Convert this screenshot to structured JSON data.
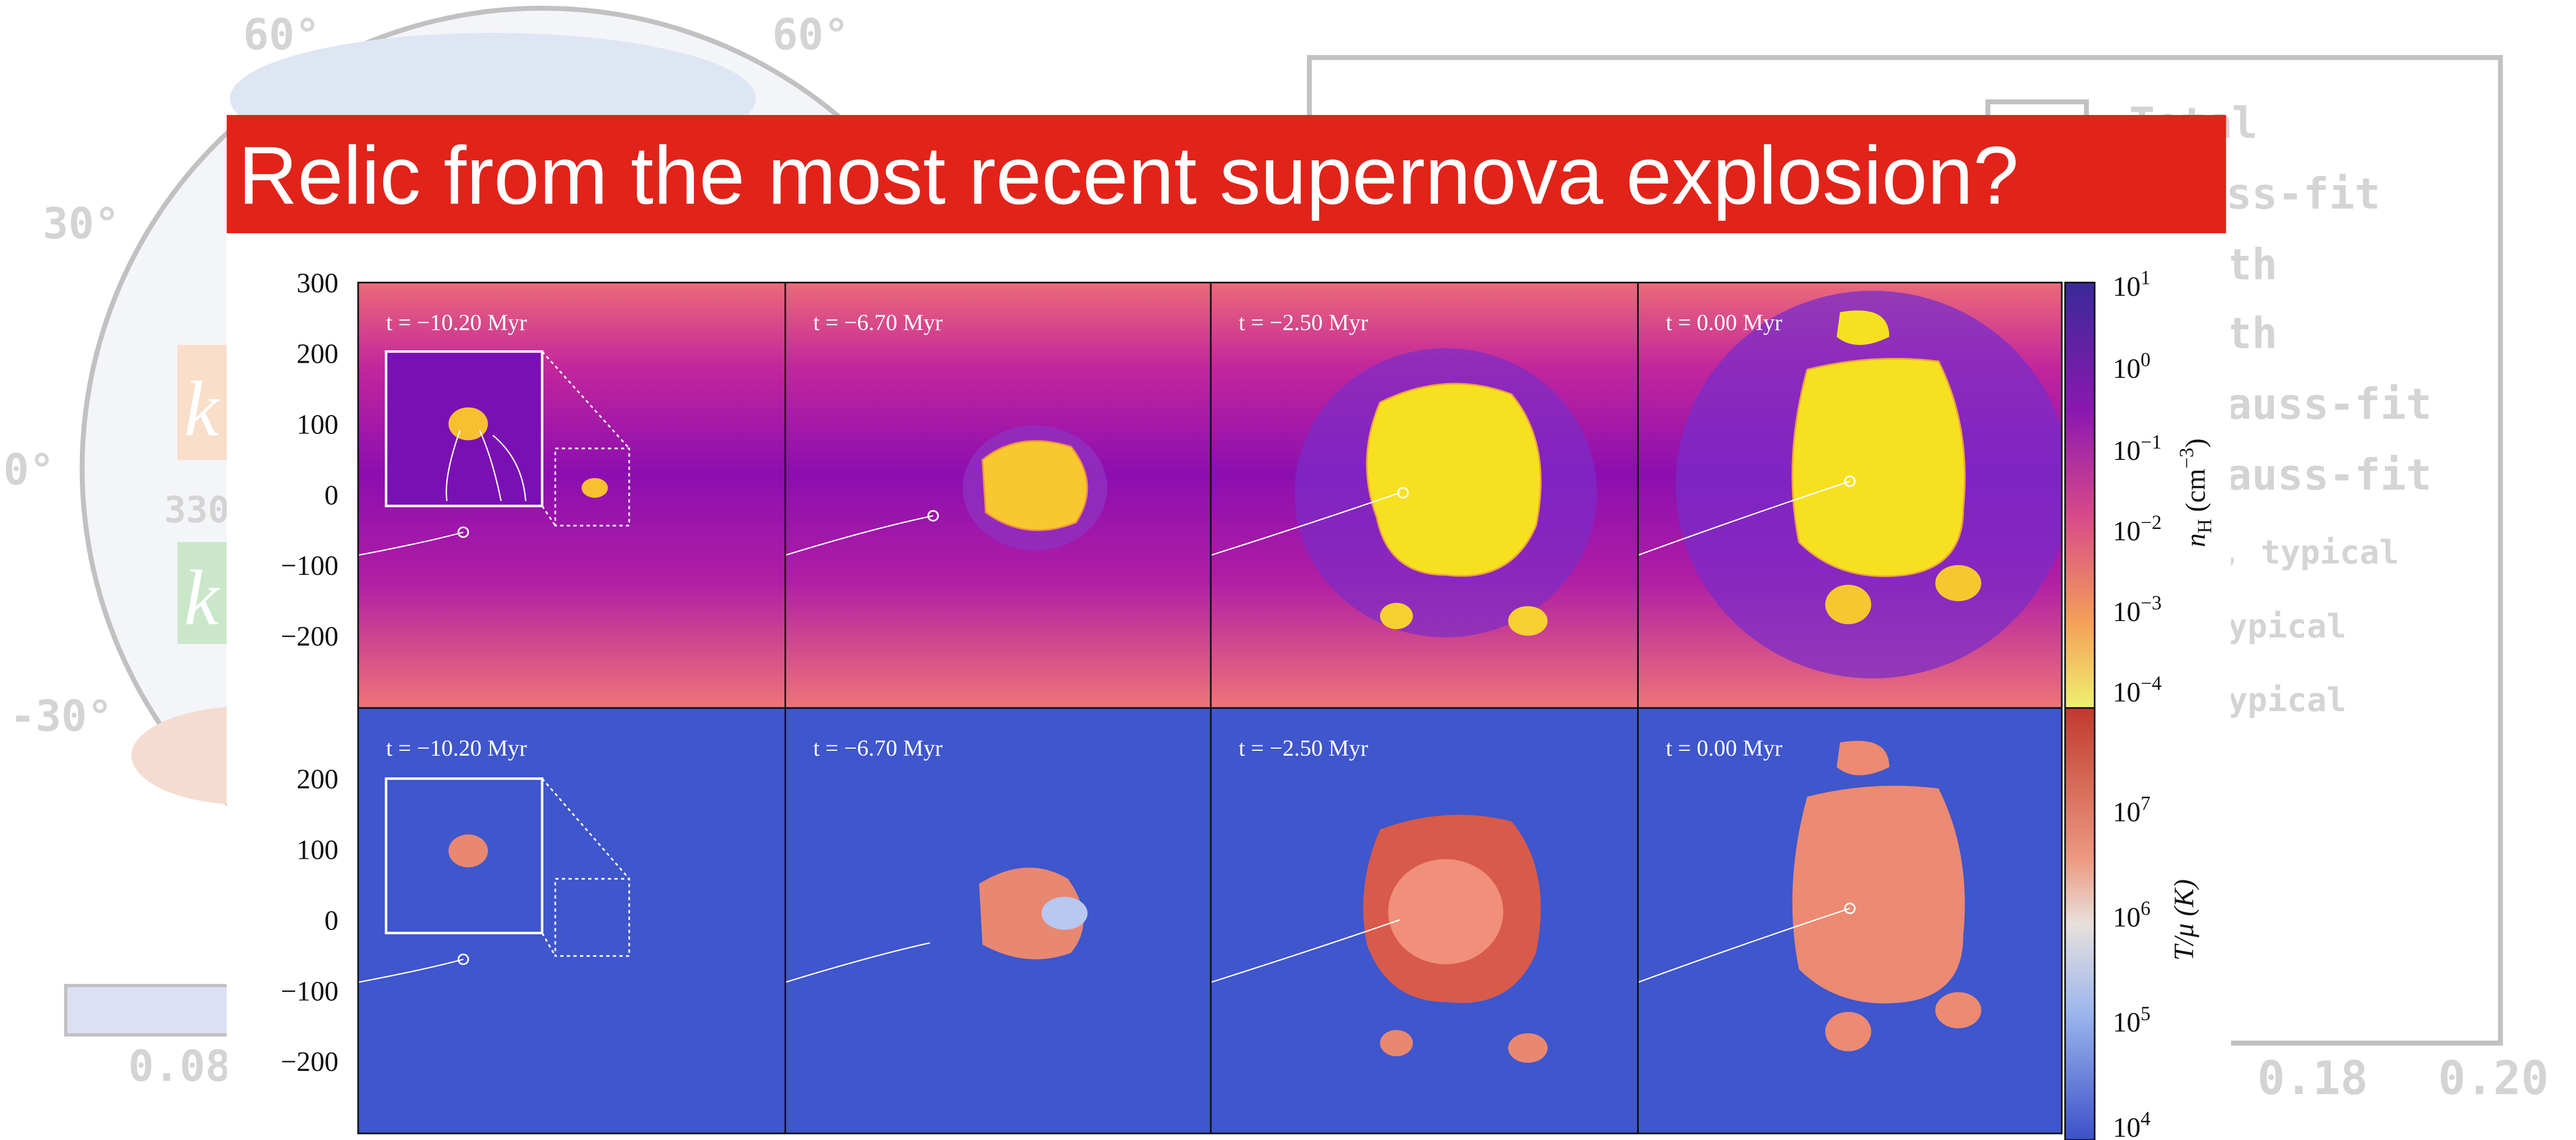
{
  "title": "Relic from the most recent supernova explosion?",
  "background": {
    "lat_labels": [
      "60°",
      "60°",
      "30°",
      "0°",
      "-30°"
    ],
    "sky_center_label": "330",
    "k_labels": [
      "k",
      "k"
    ],
    "colorbar_tick": "0.08",
    "x_ticks": [
      "0.18",
      "0.20"
    ],
    "legend": [
      "Total",
      "ss-fit",
      "th",
      "th",
      "auss-fit",
      "auss-fit",
      ", typical",
      "ypical",
      "ypical"
    ]
  },
  "figure": {
    "rows": [
      {
        "y_ticks": [
          "300",
          "200",
          "100",
          "0",
          "−100",
          "−200"
        ],
        "panel_labels": [
          "t = −10.20 Myr",
          "t = −6.70 Myr",
          "t = −2.50 Myr",
          "t = 0.00 Myr"
        ],
        "colorbar": {
          "label": {
            "symbol": "n",
            "subscript": "H",
            "unit": " (cm",
            "exponent": "−3",
            "close": ")"
          },
          "ticks": [
            {
              "base": "10",
              "exp": "1"
            },
            {
              "base": "10",
              "exp": "0"
            },
            {
              "base": "10",
              "exp": "−1"
            },
            {
              "base": "10",
              "exp": "−2"
            },
            {
              "base": "10",
              "exp": "−3"
            },
            {
              "base": "10",
              "exp": "−4"
            }
          ]
        }
      },
      {
        "y_ticks": [
          "200",
          "100",
          "0",
          "−100",
          "−200"
        ],
        "panel_labels": [
          "t = −10.20 Myr",
          "t = −6.70 Myr",
          "t = −2.50 Myr",
          "t = 0.00 Myr"
        ],
        "colorbar": {
          "label": {
            "text": "T/μ (K)"
          },
          "ticks": [
            {
              "base": "10",
              "exp": "7"
            },
            {
              "base": "10",
              "exp": "6"
            },
            {
              "base": "10",
              "exp": "5"
            },
            {
              "base": "10",
              "exp": "4"
            }
          ]
        }
      }
    ]
  }
}
